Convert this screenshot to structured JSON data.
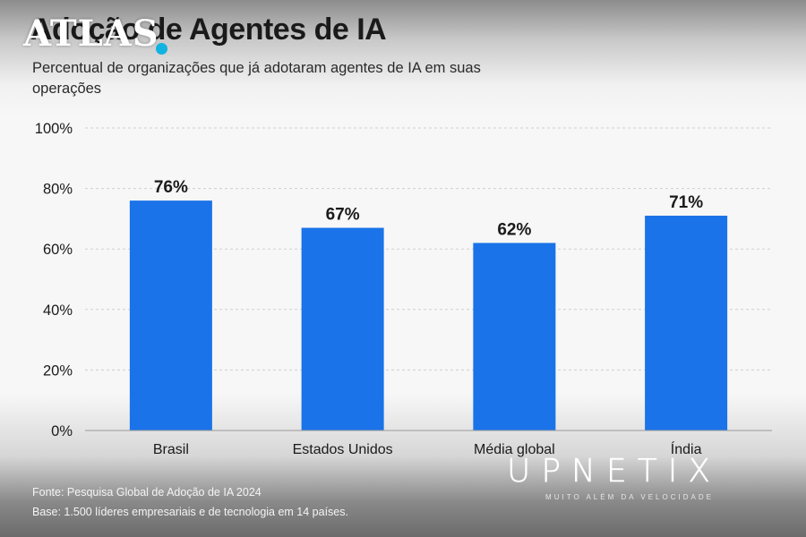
{
  "branding": {
    "logo_text": "ATLAS",
    "watermark_name": "UPNETIX",
    "watermark_tagline": "MUITO ALÉM DA VELOCIDADE"
  },
  "footer": {
    "source": "Fonte: Pesquisa Global de Adoção de IA 2024",
    "base": "Base: 1.500 líderes empresariais e de tecnologia em 14 países."
  },
  "chart_data": {
    "type": "bar",
    "title": "Adoção de Agentes de IA",
    "subtitle": "Percentual de organizações que já adotaram agentes de IA em suas operações",
    "categories": [
      "Brasil",
      "Estados Unidos",
      "Média global",
      "Índia"
    ],
    "values": [
      76,
      67,
      62,
      71
    ],
    "value_labels": [
      "76%",
      "67%",
      "62%",
      "71%"
    ],
    "ylim": [
      0,
      100
    ],
    "yticks": [
      0,
      20,
      40,
      60,
      80,
      100
    ],
    "ytick_labels": [
      "0%",
      "20%",
      "40%",
      "60%",
      "80%",
      "100%"
    ],
    "grid": true,
    "bar_color": "#1a73e8",
    "xlabel": "",
    "ylabel": ""
  }
}
